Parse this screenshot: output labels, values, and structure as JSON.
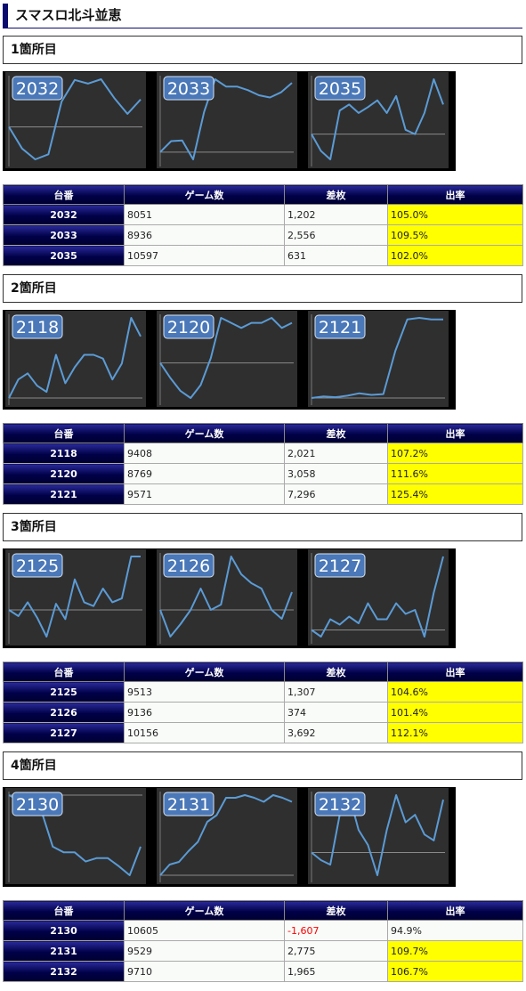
{
  "page": {
    "title": "スマスロ北斗並恵"
  },
  "colors": {
    "header_navy": "#000048",
    "highlight": "#ffff00",
    "line": "#5b9bd5",
    "badge": "#4a78b8",
    "panel": "#2f2f2f",
    "negative": "#ff0000"
  },
  "table_headers": {
    "machine": "台番",
    "games": "ゲーム数",
    "diff": "差枚",
    "rate": "出率"
  },
  "sections": [
    {
      "title": "1箇所目",
      "charts": [
        {
          "label": "2032",
          "series": [
            0,
            -30,
            -45,
            -38,
            35,
            65,
            60,
            66,
            40,
            18,
            38
          ]
        },
        {
          "label": "2033",
          "series": [
            0,
            15,
            16,
            -10,
            55,
            100,
            90,
            90,
            85,
            78,
            75,
            82,
            95
          ]
        },
        {
          "label": "2035",
          "series": [
            0,
            -20,
            -30,
            28,
            35,
            25,
            32,
            40,
            25,
            45,
            5,
            0,
            25,
            65,
            35
          ]
        }
      ],
      "rows": [
        {
          "machine": "2032",
          "games": "8051",
          "diff": "1,202",
          "rate": "105.0%"
        },
        {
          "machine": "2033",
          "games": "8936",
          "diff": "2,556",
          "rate": "109.5%"
        },
        {
          "machine": "2035",
          "games": "10597",
          "diff": "631",
          "rate": "102.0%"
        }
      ]
    },
    {
      "title": "2箇所目",
      "charts": [
        {
          "label": "2118",
          "series": [
            0,
            15,
            20,
            10,
            5,
            35,
            12,
            25,
            35,
            35,
            32,
            15,
            28,
            65,
            50
          ]
        },
        {
          "label": "2120",
          "series": [
            0,
            -15,
            -28,
            -35,
            -22,
            5,
            45,
            40,
            35,
            40,
            40,
            45,
            35,
            40
          ]
        },
        {
          "label": "2121",
          "series": [
            0,
            2,
            1,
            3,
            6,
            4,
            5,
            60,
            100,
            102,
            100,
            100
          ]
        }
      ],
      "rows": [
        {
          "machine": "2118",
          "games": "9408",
          "diff": "2,021",
          "rate": "107.2%"
        },
        {
          "machine": "2120",
          "games": "8769",
          "diff": "3,058",
          "rate": "111.6%"
        },
        {
          "machine": "2121",
          "games": "9571",
          "diff": "7,296",
          "rate": "125.4%"
        }
      ]
    },
    {
      "title": "3箇所目",
      "charts": [
        {
          "label": "2125",
          "series": [
            0,
            -8,
            10,
            -10,
            -35,
            8,
            -12,
            40,
            10,
            5,
            28,
            10,
            15,
            70,
            70
          ]
        },
        {
          "label": "2126",
          "series": [
            0,
            -15,
            -8,
            0,
            12,
            0,
            3,
            30,
            20,
            15,
            12,
            0,
            -5,
            10
          ]
        },
        {
          "label": "2127",
          "series": [
            0,
            -5,
            8,
            4,
            10,
            5,
            20,
            8,
            8,
            20,
            12,
            15,
            -5,
            28,
            55
          ]
        }
      ],
      "rows": [
        {
          "machine": "2125",
          "games": "9513",
          "diff": "1,307",
          "rate": "104.6%"
        },
        {
          "machine": "2126",
          "games": "9136",
          "diff": "374",
          "rate": "101.4%"
        },
        {
          "machine": "2127",
          "games": "10156",
          "diff": "3,692",
          "rate": "112.1%"
        }
      ]
    },
    {
      "title": "4箇所目",
      "charts": [
        {
          "label": "2130",
          "series": [
            0,
            -5,
            0,
            -15,
            -45,
            -50,
            -50,
            -58,
            -55,
            -55,
            -62,
            -70,
            -45
          ]
        },
        {
          "label": "2131",
          "series": [
            0,
            8,
            10,
            18,
            25,
            40,
            45,
            58,
            58,
            60,
            58,
            55,
            60,
            58,
            55
          ]
        },
        {
          "label": "2132",
          "series": [
            0,
            -5,
            -8,
            25,
            38,
            15,
            5,
            -15,
            15,
            38,
            20,
            25,
            12,
            8,
            35
          ]
        }
      ],
      "rows": [
        {
          "machine": "2130",
          "games": "10605",
          "diff": "-1,607",
          "rate": "94.9%"
        },
        {
          "machine": "2131",
          "games": "9529",
          "diff": "2,775",
          "rate": "109.7%"
        },
        {
          "machine": "2132",
          "games": "9710",
          "diff": "1,965",
          "rate": "106.7%"
        }
      ]
    }
  ]
}
